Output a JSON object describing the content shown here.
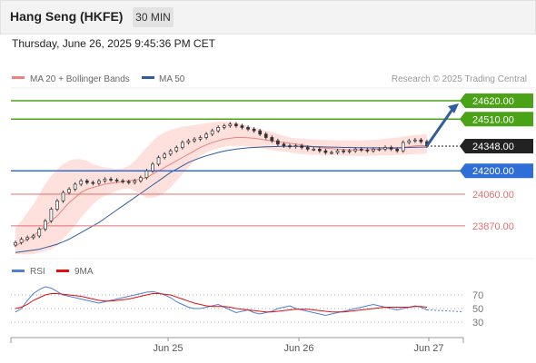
{
  "header": {
    "title": "Hang Seng (HKFE)",
    "interval": "30 MIN",
    "timestamp": "Thursday, June 26, 2025 9:45:36 PM CET"
  },
  "credit": "Research © 2025 Trading Central",
  "legend": {
    "price": [
      {
        "label": "MA 20 + Bollinger Bands",
        "color": "#f0827d"
      },
      {
        "label": "MA 50",
        "color": "#2f5d9e"
      }
    ],
    "osc": [
      {
        "label": "RSI",
        "color": "#4f7fd6"
      },
      {
        "label": "9MA",
        "color": "#e01010"
      }
    ]
  },
  "colors": {
    "resistance": "#4aa317",
    "support": "#2f6ed8",
    "support_weak": "#e07070",
    "up": "#ffffff",
    "down": "#333333",
    "band": "#fdd5d2",
    "ma20": "#f0827d",
    "ma50": "#2f5d9e",
    "arrow": "#2f5d9e"
  },
  "chart_data": [
    {
      "type": "candlestick",
      "x_ticks": [
        "Jun 25",
        "Jun 26",
        "Jun 27"
      ],
      "ylim": [
        23690,
        24680
      ],
      "levels": [
        {
          "value": 24620.0,
          "label": "24620.00",
          "kind": "resistance"
        },
        {
          "value": 24510.0,
          "label": "24510.00",
          "kind": "resistance"
        },
        {
          "value": 24348.0,
          "label": "24348.00",
          "kind": "last"
        },
        {
          "value": 24200.0,
          "label": "24200.00",
          "kind": "support"
        },
        {
          "value": 24060.0,
          "label": "24060.00",
          "kind": "support_weak"
        },
        {
          "value": 23870.0,
          "label": "23870.00",
          "kind": "support_weak"
        }
      ],
      "close": [
        23770,
        23790,
        23800,
        23810,
        23850,
        23900,
        23970,
        24020,
        24070,
        24090,
        24120,
        24140,
        24130,
        24125,
        24140,
        24150,
        24145,
        24140,
        24135,
        24130,
        24140,
        24160,
        24200,
        24240,
        24280,
        24300,
        24320,
        24340,
        24370,
        24380,
        24390,
        24400,
        24420,
        24440,
        24460,
        24470,
        24480,
        24470,
        24460,
        24450,
        24440,
        24420,
        24400,
        24380,
        24360,
        24350,
        24345,
        24350,
        24340,
        24330,
        24330,
        24320,
        24310,
        24310,
        24320,
        24315,
        24320,
        24330,
        24325,
        24320,
        24330,
        24330,
        24340,
        24330,
        24320,
        24370,
        24380,
        24385,
        24375,
        24350
      ],
      "ma20": [
        23750,
        23770,
        23790,
        23810,
        23840,
        23870,
        23900,
        23930,
        23970,
        24010,
        24040,
        24070,
        24090,
        24100,
        24110,
        24120,
        24125,
        24130,
        24135,
        24140,
        24145,
        24150,
        24160,
        24180,
        24200,
        24220,
        24240,
        24260,
        24280,
        24300,
        24320,
        24340,
        24355,
        24370,
        24380,
        24390,
        24395,
        24400,
        24400,
        24398,
        24395,
        24390,
        24385,
        24380,
        24375,
        24370,
        24365,
        24360,
        24355,
        24350,
        24345,
        24340,
        24336,
        24333,
        24330,
        24328,
        24326,
        24325,
        24325,
        24326,
        24328,
        24330,
        24332,
        24334,
        24336,
        24340,
        24345,
        24350,
        24352,
        24350
      ],
      "bb_upper": [
        23860,
        23900,
        23950,
        24000,
        24060,
        24120,
        24170,
        24210,
        24240,
        24260,
        24270,
        24270,
        24260,
        24240,
        24230,
        24220,
        24215,
        24210,
        24215,
        24230,
        24260,
        24300,
        24340,
        24380,
        24410,
        24430,
        24445,
        24455,
        24465,
        24470,
        24475,
        24480,
        24485,
        24490,
        24495,
        24495,
        24495,
        24490,
        24480,
        24470,
        24460,
        24450,
        24440,
        24430,
        24420,
        24410,
        24400,
        24395,
        24392,
        24390,
        24388,
        24386,
        24385,
        24384,
        24383,
        24382,
        24382,
        24382,
        24383,
        24384,
        24386,
        24388,
        24392,
        24396,
        24400,
        24405,
        24410,
        24415,
        24418,
        24420
      ],
      "bb_lower": [
        23700,
        23700,
        23700,
        23700,
        23710,
        23720,
        23730,
        23750,
        23790,
        23830,
        23870,
        23920,
        23960,
        24000,
        24030,
        24050,
        24065,
        24080,
        24090,
        24095,
        24080,
        24060,
        24040,
        24040,
        24050,
        24070,
        24100,
        24140,
        24180,
        24220,
        24260,
        24290,
        24310,
        24325,
        24335,
        24345,
        24350,
        24350,
        24350,
        24345,
        24340,
        24335,
        24330,
        24325,
        24320,
        24315,
        24310,
        24305,
        24300,
        24298,
        24296,
        24295,
        24294,
        24293,
        24292,
        24291,
        24290,
        24289,
        24289,
        24290,
        24291,
        24292,
        24293,
        24294,
        24295,
        24296,
        24298,
        24300,
        24302,
        24305
      ],
      "ma50": [
        23710,
        23715,
        23720,
        23725,
        23730,
        23740,
        23750,
        23760,
        23775,
        23790,
        23810,
        23830,
        23850,
        23870,
        23890,
        23915,
        23940,
        23965,
        23990,
        24015,
        24040,
        24065,
        24090,
        24115,
        24140,
        24165,
        24190,
        24210,
        24230,
        24250,
        24265,
        24278,
        24290,
        24300,
        24310,
        24318,
        24324,
        24330,
        24334,
        24338,
        24340,
        24342,
        24344,
        24345,
        24346,
        24347,
        24347,
        24347,
        24347,
        24346,
        24345,
        24344,
        24343,
        24342,
        24341,
        24340,
        24340,
        24339,
        24339,
        24338,
        24338,
        24338,
        24338,
        24338,
        24338,
        24339,
        24340,
        24341,
        24342,
        24343
      ]
    },
    {
      "type": "line",
      "name": "RSI panel",
      "y_ticks": [
        70,
        50,
        30
      ],
      "ylim": [
        10,
        90
      ],
      "rsi": [
        45,
        50,
        62,
        72,
        78,
        82,
        80,
        75,
        70,
        68,
        66,
        64,
        62,
        60,
        58,
        60,
        62,
        64,
        66,
        68,
        70,
        72,
        74,
        75,
        73,
        70,
        66,
        60,
        56,
        52,
        50,
        50,
        52,
        54,
        56,
        52,
        48,
        44,
        46,
        48,
        44,
        42,
        44,
        46,
        50,
        52,
        54,
        50,
        48,
        46,
        44,
        42,
        40,
        42,
        44,
        46,
        48,
        50,
        52,
        54,
        56,
        54,
        52,
        50,
        48,
        50,
        52,
        54,
        52,
        48
      ],
      "ma9": [
        50,
        52,
        56,
        62,
        66,
        70,
        72,
        72,
        71,
        70,
        69,
        68,
        66,
        64,
        62,
        61,
        61,
        62,
        63,
        64,
        66,
        68,
        70,
        72,
        72,
        71,
        70,
        67,
        64,
        61,
        58,
        56,
        54,
        53,
        53,
        53,
        52,
        50,
        49,
        48,
        47,
        46,
        45,
        45,
        46,
        47,
        48,
        49,
        49,
        49,
        48,
        47,
        46,
        45,
        45,
        45,
        46,
        47,
        48,
        49,
        50,
        51,
        52,
        52,
        52,
        52,
        52,
        53,
        53,
        52
      ]
    }
  ]
}
